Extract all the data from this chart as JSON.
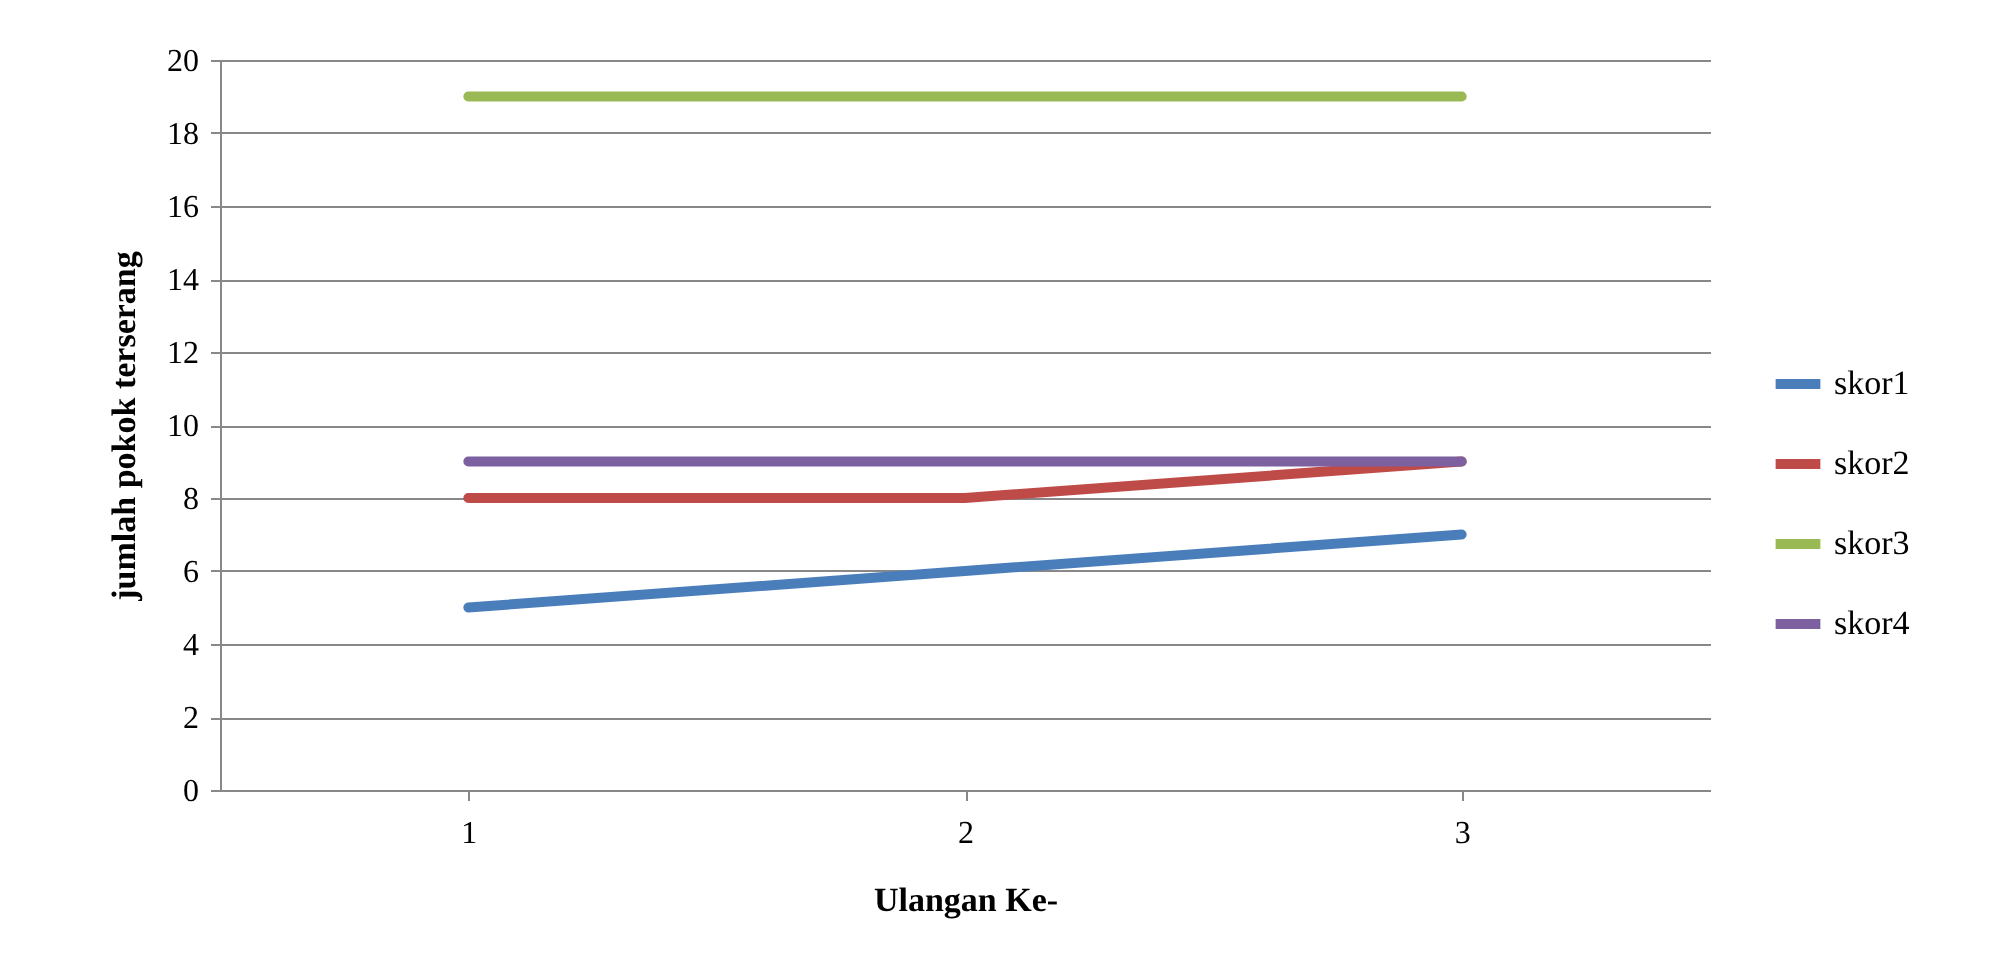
{
  "chart_data": {
    "type": "line",
    "xlabel": "Ulangan Ke-",
    "ylabel": "jumlah pokok terserang",
    "categories": [
      "1",
      "2",
      "3"
    ],
    "series": [
      {
        "name": "skor1",
        "color": "#4a7ebb",
        "values": [
          5,
          6,
          7
        ]
      },
      {
        "name": "skor2",
        "color": "#be4b48",
        "values": [
          8,
          8,
          9
        ]
      },
      {
        "name": "skor3",
        "color": "#98b954",
        "values": [
          19,
          19,
          19
        ]
      },
      {
        "name": "skor4",
        "color": "#7d60a0",
        "values": [
          9,
          9,
          9
        ]
      }
    ],
    "ylim": [
      0,
      20
    ],
    "yticks": [
      0,
      2,
      4,
      6,
      8,
      10,
      12,
      14,
      16,
      18,
      20
    ],
    "grid": "y",
    "legend": "right",
    "marker": "none",
    "line_style": "solid"
  }
}
